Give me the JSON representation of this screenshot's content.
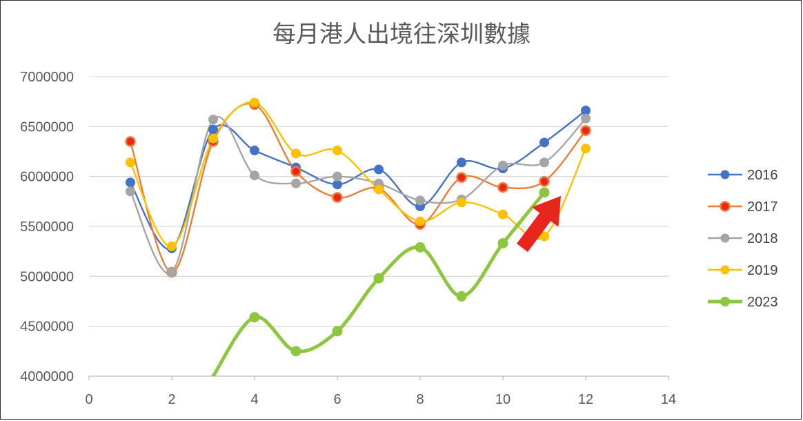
{
  "chart_data": {
    "type": "line",
    "title": "每月港人出境往深圳數據",
    "xlabel": "",
    "ylabel": "",
    "xlim": [
      0,
      14
    ],
    "ylim": [
      4000000,
      7000000
    ],
    "x_ticks": [
      "0",
      "2",
      "4",
      "6",
      "8",
      "10",
      "12",
      "14"
    ],
    "y_ticks": [
      "4000000",
      "4500000",
      "5000000",
      "5500000",
      "6000000",
      "6500000",
      "7000000"
    ],
    "grid": "horizontal",
    "legend_position": "right",
    "smooth": true,
    "series": [
      {
        "name": "2016",
        "color": "#4472C4",
        "x": [
          1,
          2,
          3,
          4,
          5,
          6,
          7,
          8,
          9,
          10,
          11,
          12
        ],
        "values": [
          5940000,
          5280000,
          6470000,
          6260000,
          6090000,
          5920000,
          6070000,
          5700000,
          6140000,
          6080000,
          6340000,
          6660000
        ]
      },
      {
        "name": "2017",
        "color": "#ED7D31",
        "x": [
          1,
          2,
          3,
          4,
          5,
          6,
          7,
          8,
          9,
          10,
          11,
          12
        ],
        "values": [
          6350000,
          5040000,
          6350000,
          6720000,
          6050000,
          5790000,
          5880000,
          5520000,
          5990000,
          5890000,
          5950000,
          6460000
        ]
      },
      {
        "name": "2018",
        "color": "#A5A5A5",
        "x": [
          1,
          2,
          3,
          4,
          5,
          6,
          7,
          8,
          9,
          10,
          11,
          12
        ],
        "values": [
          5850000,
          5040000,
          6570000,
          6010000,
          5930000,
          6000000,
          5930000,
          5760000,
          5770000,
          6110000,
          6140000,
          6580000
        ]
      },
      {
        "name": "2019",
        "color": "#FFC000",
        "x": [
          1,
          2,
          3,
          4,
          5,
          6,
          7,
          8,
          9,
          10,
          11,
          12
        ],
        "values": [
          6140000,
          5300000,
          6380000,
          6740000,
          6230000,
          6260000,
          5870000,
          5550000,
          5740000,
          5620000,
          5400000,
          6280000
        ]
      },
      {
        "name": "2023",
        "color": "#8DC63F",
        "x": [
          3,
          4,
          5,
          6,
          7,
          8,
          9,
          10,
          11
        ],
        "values": [
          4000000,
          4590000,
          4250000,
          4450000,
          4980000,
          5290000,
          4800000,
          5330000,
          5840000
        ]
      }
    ],
    "annotations": [
      {
        "type": "arrow",
        "color": "#E8261C",
        "points_to_series": "2023",
        "points_to_x": 11
      }
    ]
  }
}
